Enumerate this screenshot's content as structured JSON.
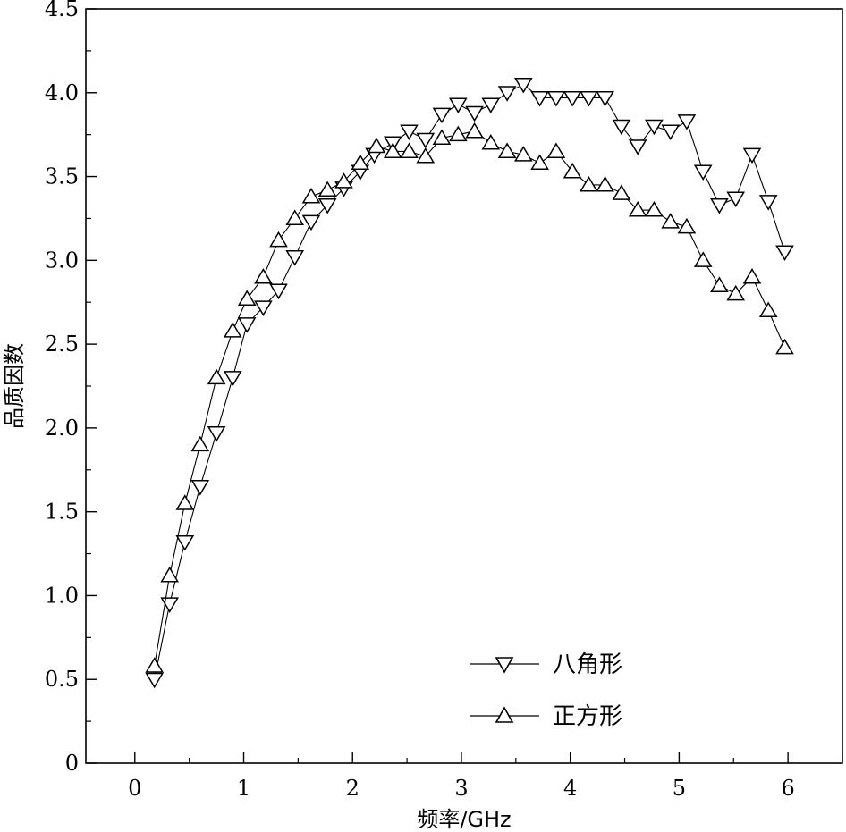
{
  "chart_data": {
    "type": "line",
    "xlabel": "频率/GHz",
    "ylabel": "品质因数",
    "xlim": [
      -0.45,
      6.5
    ],
    "ylim": [
      0,
      4.5
    ],
    "xticks": [
      0,
      1,
      2,
      3,
      4,
      5,
      6
    ],
    "xtick_labels": [
      "0",
      "1",
      "2",
      "3",
      "4",
      "5",
      "6"
    ],
    "yticks": [
      0,
      0.5,
      1.0,
      1.5,
      2.0,
      2.5,
      3.0,
      3.5,
      4.0,
      4.5
    ],
    "ytick_labels": [
      "0",
      "0.5",
      "1.0",
      "1.5",
      "2.0",
      "2.5",
      "3.0",
      "3.5",
      "4.0",
      "4.5"
    ],
    "grid": false,
    "legend_position": "bottom-center",
    "series": [
      {
        "name": "八角形",
        "marker": "triangle-down",
        "color": "#000000",
        "x": [
          0.18,
          0.32,
          0.46,
          0.6,
          0.75,
          0.9,
          1.03,
          1.18,
          1.32,
          1.47,
          1.62,
          1.77,
          1.92,
          2.07,
          2.2,
          2.37,
          2.52,
          2.67,
          2.82,
          2.97,
          3.12,
          3.27,
          3.42,
          3.57,
          3.72,
          3.87,
          4.02,
          4.17,
          4.32,
          4.47,
          4.62,
          4.77,
          4.92,
          5.07,
          5.22,
          5.37,
          5.52,
          5.67,
          5.82,
          5.97
        ],
        "y": [
          0.5,
          0.95,
          1.32,
          1.65,
          1.97,
          2.3,
          2.62,
          2.72,
          2.82,
          3.02,
          3.23,
          3.33,
          3.43,
          3.53,
          3.63,
          3.7,
          3.77,
          3.72,
          3.87,
          3.93,
          3.88,
          3.93,
          4.0,
          4.05,
          3.97,
          3.97,
          3.97,
          3.97,
          3.97,
          3.8,
          3.68,
          3.8,
          3.77,
          3.83,
          3.53,
          3.33,
          3.37,
          3.63,
          3.35,
          3.05
        ]
      },
      {
        "name": "正方形",
        "marker": "triangle-up",
        "color": "#000000",
        "x": [
          0.18,
          0.32,
          0.46,
          0.6,
          0.75,
          0.9,
          1.03,
          1.18,
          1.32,
          1.47,
          1.62,
          1.77,
          1.92,
          2.07,
          2.22,
          2.37,
          2.52,
          2.67,
          2.82,
          2.97,
          3.12,
          3.27,
          3.42,
          3.57,
          3.72,
          3.87,
          4.02,
          4.17,
          4.32,
          4.47,
          4.62,
          4.77,
          4.92,
          5.07,
          5.22,
          5.37,
          5.52,
          5.67,
          5.82,
          5.97
        ],
        "y": [
          0.58,
          1.12,
          1.55,
          1.9,
          2.3,
          2.58,
          2.77,
          2.9,
          3.12,
          3.25,
          3.38,
          3.42,
          3.47,
          3.58,
          3.68,
          3.65,
          3.65,
          3.62,
          3.73,
          3.75,
          3.77,
          3.7,
          3.65,
          3.63,
          3.58,
          3.65,
          3.53,
          3.45,
          3.45,
          3.4,
          3.3,
          3.3,
          3.23,
          3.2,
          3.0,
          2.85,
          2.8,
          2.9,
          2.7,
          2.48
        ]
      }
    ]
  }
}
